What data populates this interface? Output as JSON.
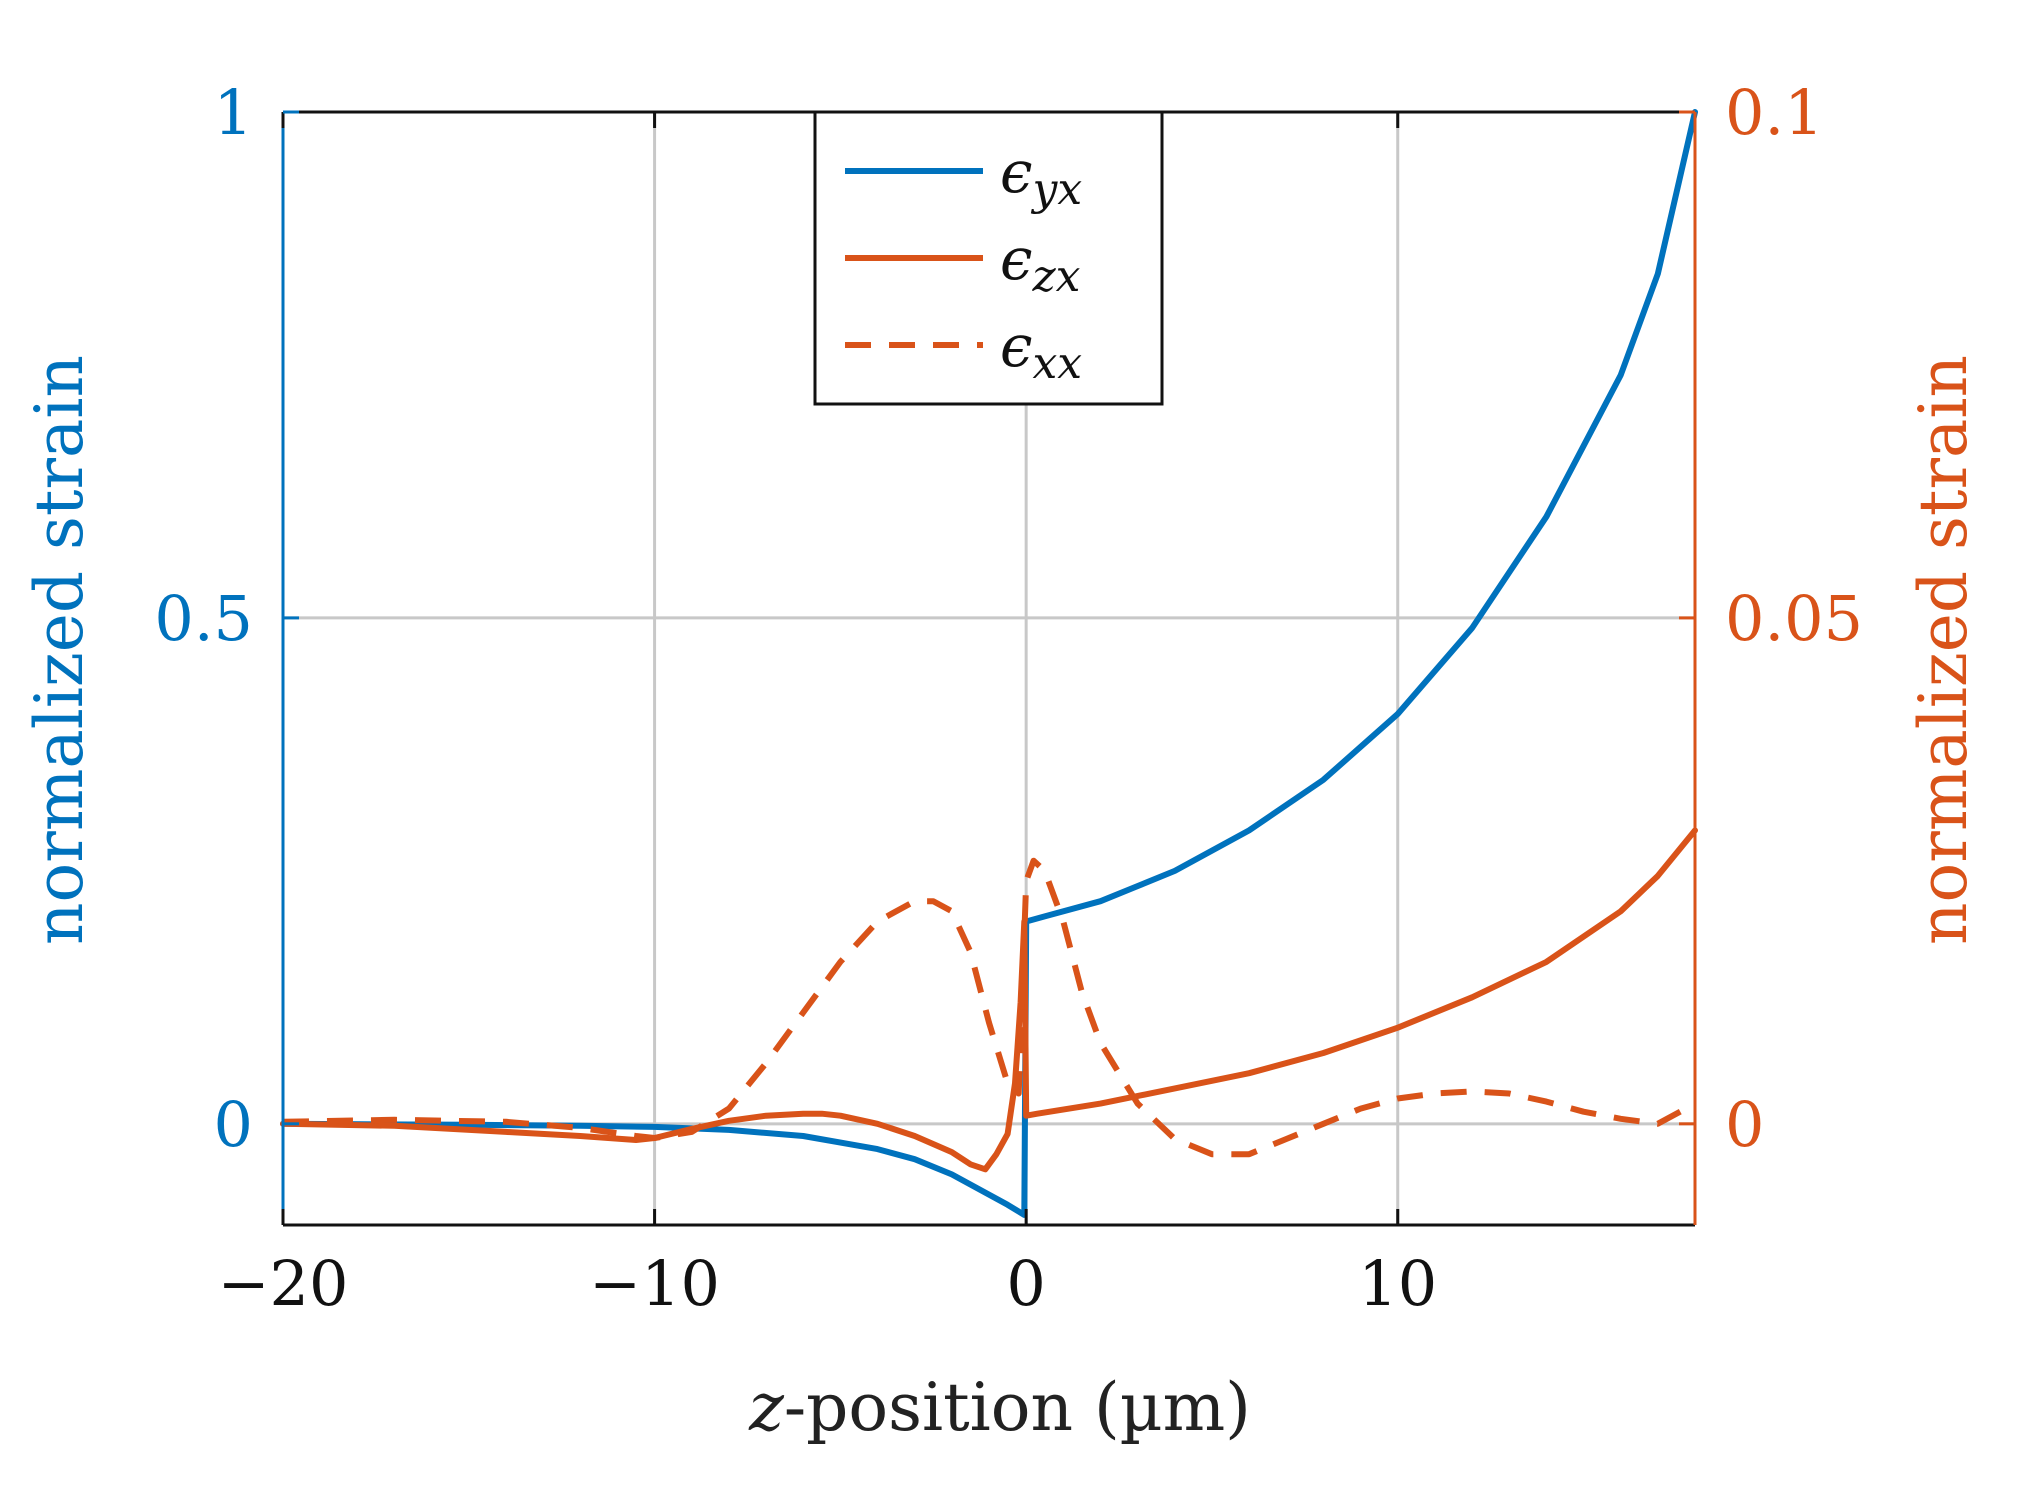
{
  "chart_data": {
    "type": "line",
    "xlabel": "z-position (µm)",
    "xlabel_italic_part": "z",
    "xlabel_rest": "-position (µm)",
    "ylabel_left": "normalized strain",
    "ylabel_right": "normalized strain",
    "xlim": [
      -20,
      18
    ],
    "ylim_left": [
      -0.1,
      1
    ],
    "ylim_right": [
      -0.01,
      0.1
    ],
    "xticks": [
      -20,
      -10,
      0,
      10
    ],
    "xtick_labels": [
      "−20",
      "−10",
      "0",
      "10"
    ],
    "yticks_left": [
      0,
      0.5,
      1
    ],
    "ytick_labels_left": [
      "0",
      "0.5",
      "1"
    ],
    "yticks_right": [
      0,
      0.05,
      0.1
    ],
    "ytick_labels_right": [
      "0",
      "0.05",
      "0.1"
    ],
    "grid": true,
    "legend_position": "top-center",
    "colors": {
      "blue": "#0072BD",
      "orange": "#D95319"
    },
    "series": [
      {
        "name": "ϵyx",
        "symbol": "ϵ",
        "subscript": "yx",
        "axis": "left",
        "style": "solid",
        "color": "#0072BD",
        "x": [
          -20,
          -15,
          -12,
          -10,
          -8,
          -6,
          -4,
          -3,
          -2,
          -1,
          -0.5,
          -0.05,
          0,
          0.5,
          2,
          4,
          6,
          8,
          10,
          12,
          14,
          16,
          17,
          18
        ],
        "y": [
          0,
          -0.001,
          -0.002,
          -0.003,
          -0.006,
          -0.012,
          -0.025,
          -0.035,
          -0.05,
          -0.07,
          -0.08,
          -0.09,
          0.2,
          0.205,
          0.22,
          0.25,
          0.29,
          0.34,
          0.405,
          0.49,
          0.6,
          0.74,
          0.84,
          1.0
        ]
      },
      {
        "name": "ϵzx",
        "symbol": "ϵ",
        "subscript": "zx",
        "axis": "right",
        "style": "solid",
        "color": "#D95319",
        "x": [
          -20,
          -17,
          -14,
          -12,
          -10.5,
          -10,
          -9,
          -8,
          -7,
          -6,
          -5.5,
          -5,
          -4,
          -3,
          -2,
          -1.5,
          -1.1,
          -0.8,
          -0.5,
          -0.3,
          -0.15,
          -0.05,
          0,
          0.3,
          2,
          4,
          6,
          8,
          10,
          12,
          14,
          16,
          17,
          18
        ],
        "y": [
          0,
          -0.0002,
          -0.0008,
          -0.0012,
          -0.0016,
          -0.0014,
          -0.0005,
          0.0003,
          0.0008,
          0.001,
          0.001,
          0.0008,
          0,
          -0.0012,
          -0.0028,
          -0.004,
          -0.0045,
          -0.003,
          -0.001,
          0.004,
          0.012,
          0.02,
          0.0008,
          0.001,
          0.002,
          0.0035,
          0.005,
          0.007,
          0.0095,
          0.0125,
          0.016,
          0.021,
          0.0245,
          0.029
        ]
      },
      {
        "name": "ϵxx",
        "symbol": "ϵ",
        "subscript": "xx",
        "axis": "right",
        "style": "dashed",
        "color": "#D95319",
        "x": [
          -20,
          -17,
          -14,
          -12,
          -10.5,
          -10,
          -9,
          -8,
          -7,
          -6,
          -5,
          -4,
          -3,
          -2.5,
          -2,
          -1.5,
          -1,
          -0.5,
          -0.2,
          0,
          0.2,
          0.5,
          1,
          1.5,
          2,
          3,
          4,
          5,
          6,
          7,
          8,
          9,
          10,
          11,
          12,
          13,
          14,
          15,
          16,
          17,
          18
        ],
        "y": [
          0.0002,
          0.0004,
          0.0002,
          -0.0004,
          -0.0012,
          -0.0014,
          -0.0008,
          0.0015,
          0.006,
          0.011,
          0.016,
          0.02,
          0.022,
          0.022,
          0.021,
          0.017,
          0.01,
          0.004,
          0.003,
          0.024,
          0.026,
          0.025,
          0.02,
          0.013,
          0.008,
          0.002,
          -0.0015,
          -0.003,
          -0.003,
          -0.0015,
          0,
          0.0015,
          0.0025,
          0.003,
          0.0032,
          0.003,
          0.0022,
          0.0012,
          0.0005,
          0,
          0.002
        ]
      }
    ]
  }
}
